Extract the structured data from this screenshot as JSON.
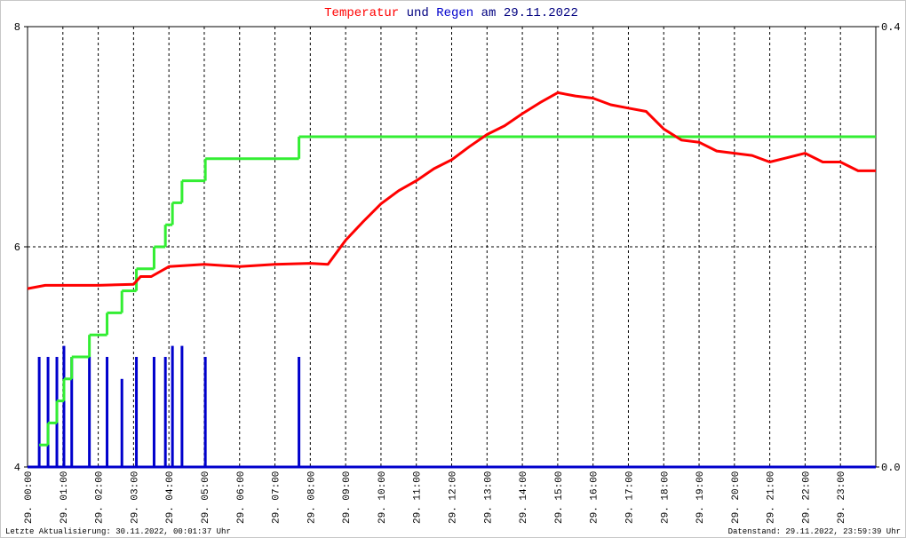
{
  "chart_data": {
    "type": "combo",
    "title_connector": "und",
    "title_date": "am 29.11.2022",
    "footer_left": "Letzte Aktualisierung: 30.11.2022, 00:01:37 Uhr",
    "footer_right": "Datenstand: 29.11.2022, 23:59:39 Uhr",
    "grid": true,
    "xlim": [
      0,
      24
    ],
    "ylim": [
      4,
      8
    ],
    "y2lim": [
      0,
      0.4
    ],
    "yticks": [
      4,
      6,
      8
    ],
    "y2ticks": [
      {
        "value": 0,
        "label": "0.0"
      },
      {
        "value": 0.4,
        "label": "0.4"
      }
    ],
    "xticks": [
      {
        "value": 0,
        "label": "29. 00:00"
      },
      {
        "value": 1,
        "label": "29. 01:00"
      },
      {
        "value": 2,
        "label": "29. 02:00"
      },
      {
        "value": 3,
        "label": "29. 03:00"
      },
      {
        "value": 4,
        "label": "29. 04:00"
      },
      {
        "value": 5,
        "label": "29. 05:00"
      },
      {
        "value": 6,
        "label": "29. 06:00"
      },
      {
        "value": 7,
        "label": "29. 07:00"
      },
      {
        "value": 8,
        "label": "29. 08:00"
      },
      {
        "value": 9,
        "label": "29. 09:00"
      },
      {
        "value": 10,
        "label": "29. 10:00"
      },
      {
        "value": 11,
        "label": "29. 11:00"
      },
      {
        "value": 12,
        "label": "29. 12:00"
      },
      {
        "value": 13,
        "label": "29. 13:00"
      },
      {
        "value": 14,
        "label": "29. 14:00"
      },
      {
        "value": 15,
        "label": "29. 15:00"
      },
      {
        "value": 16,
        "label": "29. 16:00"
      },
      {
        "value": 17,
        "label": "29. 17:00"
      },
      {
        "value": 18,
        "label": "29. 18:00"
      },
      {
        "value": 19,
        "label": "29. 19:00"
      },
      {
        "value": 20,
        "label": "29. 20:00"
      },
      {
        "value": 21,
        "label": "29. 21:00"
      },
      {
        "value": 22,
        "label": "29. 22:00"
      },
      {
        "value": 23,
        "label": "29. 23:00"
      }
    ],
    "series": [
      {
        "name": "Temperatur",
        "type": "line",
        "color": "#ff0000",
        "x": [
          0,
          0.5,
          1,
          2,
          3,
          3.2,
          3.5,
          4,
          5,
          6,
          7,
          8,
          8.5,
          9,
          9.5,
          10,
          10.5,
          11,
          11.5,
          12,
          12.5,
          13,
          13.5,
          14,
          14.5,
          15,
          15.5,
          16,
          16.5,
          17,
          17.5,
          18,
          18.5,
          19,
          19.5,
          20,
          20.5,
          21,
          21.5,
          22,
          22.5,
          23,
          23.5,
          24
        ],
        "values": [
          5.62,
          5.65,
          5.65,
          5.65,
          5.66,
          5.73,
          5.73,
          5.82,
          5.84,
          5.82,
          5.84,
          5.85,
          5.84,
          6.06,
          6.23,
          6.39,
          6.51,
          6.6,
          6.71,
          6.79,
          6.91,
          7.02,
          7.1,
          7.21,
          7.31,
          7.4,
          7.37,
          7.35,
          7.29,
          7.26,
          7.23,
          7.07,
          6.97,
          6.95,
          6.87,
          6.85,
          6.83,
          6.77,
          6.81,
          6.85,
          6.77,
          6.77,
          6.69,
          6.69
        ]
      },
      {
        "name": "Regen",
        "type": "bar",
        "axis": "y2",
        "color": "#0000cc",
        "x": [
          0.33,
          0.58,
          0.83,
          1.03,
          1.25,
          1.75,
          2.25,
          2.67,
          3.08,
          3.58,
          3.9,
          4.1,
          4.37,
          5.03,
          7.68
        ],
        "values": [
          0.1,
          0.1,
          0.1,
          0.11,
          0.1,
          0.1,
          0.1,
          0.08,
          0.1,
          0.1,
          0.1,
          0.11,
          0.11,
          0.1,
          0.1
        ]
      },
      {
        "type": "step",
        "color": "#33ee33",
        "x": [
          0.33,
          0.58,
          0.83,
          1.03,
          1.25,
          1.75,
          2.25,
          2.67,
          3.08,
          3.58,
          3.9,
          4.1,
          4.37,
          5.03,
          7.68,
          24
        ],
        "values": [
          4.2,
          4.4,
          4.6,
          4.8,
          5.0,
          5.2,
          5.4,
          5.6,
          5.8,
          6.0,
          6.2,
          6.4,
          6.6,
          6.8,
          7.0,
          7.0
        ]
      }
    ]
  }
}
